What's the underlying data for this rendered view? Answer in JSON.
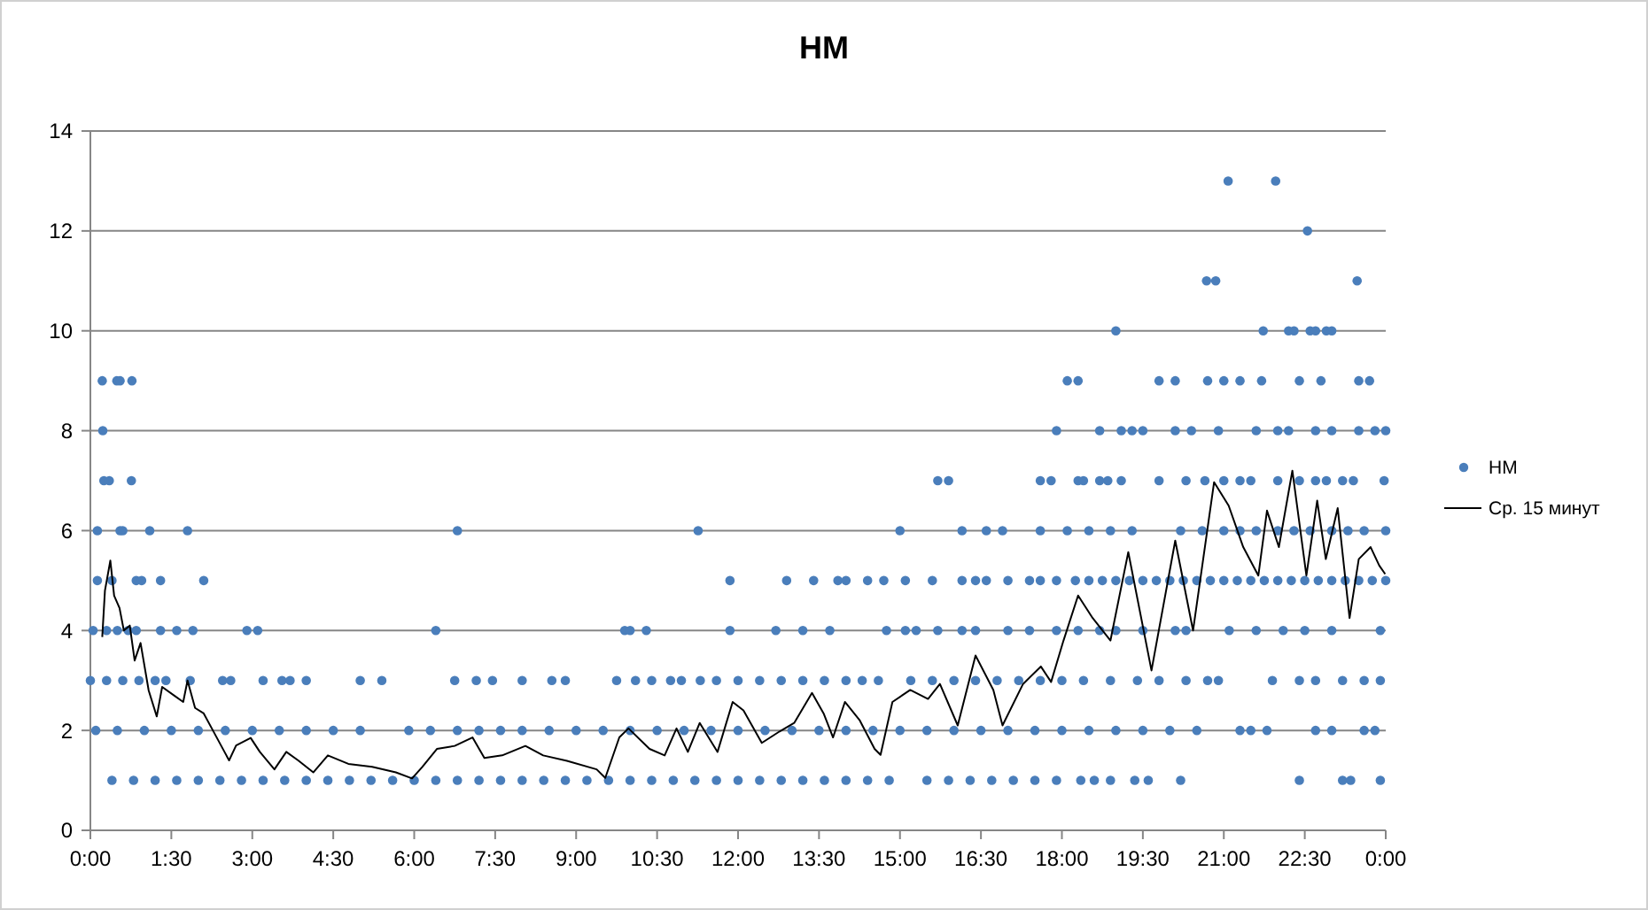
{
  "chart_data": {
    "type": "scatter",
    "title": "HM",
    "xlim": [
      0,
      24
    ],
    "ylim": [
      0,
      14
    ],
    "xticks": [
      {
        "value": 0,
        "label": "0:00"
      },
      {
        "value": 1.5,
        "label": "1:30"
      },
      {
        "value": 3,
        "label": "3:00"
      },
      {
        "value": 4.5,
        "label": "4:30"
      },
      {
        "value": 6,
        "label": "6:00"
      },
      {
        "value": 7.5,
        "label": "7:30"
      },
      {
        "value": 9,
        "label": "9:00"
      },
      {
        "value": 10.5,
        "label": "10:30"
      },
      {
        "value": 12,
        "label": "12:00"
      },
      {
        "value": 13.5,
        "label": "13:30"
      },
      {
        "value": 15,
        "label": "15:00"
      },
      {
        "value": 16.5,
        "label": "16:30"
      },
      {
        "value": 18,
        "label": "18:00"
      },
      {
        "value": 19.5,
        "label": "19:30"
      },
      {
        "value": 21,
        "label": "21:00"
      },
      {
        "value": 22.5,
        "label": "22:30"
      },
      {
        "value": 24,
        "label": "0:00"
      }
    ],
    "yticks": [
      0,
      2,
      4,
      6,
      8,
      10,
      12,
      14
    ],
    "grid": "y",
    "legend": "right",
    "series": [
      {
        "name": "HM",
        "color": "#4a7ebb",
        "marker": "circle",
        "x": [
          21.08,
          21.96,
          22.55,
          20.68,
          20.85,
          23.47,
          19.0,
          21.73,
          22.2,
          22.3,
          22.6,
          22.7,
          22.9,
          23.0,
          0.22,
          0.49,
          0.55,
          0.77,
          18.1,
          18.3,
          19.8,
          20.1,
          20.7,
          21.0,
          21.3,
          21.7,
          22.4,
          22.8,
          23.5,
          23.7,
          0.23,
          17.9,
          18.7,
          19.1,
          19.3,
          19.5,
          20.1,
          20.4,
          20.9,
          21.6,
          22.0,
          22.2,
          22.7,
          23.0,
          23.5,
          23.8,
          24.0,
          0.25,
          0.35,
          0.76,
          15.7,
          15.9,
          17.6,
          17.8,
          18.3,
          18.4,
          18.7,
          18.85,
          19.1,
          19.8,
          20.3,
          20.65,
          21.0,
          21.3,
          21.5,
          22.0,
          22.4,
          22.7,
          22.9,
          23.2,
          23.4,
          23.97,
          0.13,
          0.55,
          0.6,
          1.1,
          1.8,
          6.8,
          11.26,
          15.0,
          16.15,
          16.6,
          16.9,
          17.6,
          18.1,
          18.5,
          18.9,
          19.3,
          20.2,
          20.6,
          21.0,
          21.3,
          21.6,
          22.0,
          22.3,
          22.6,
          23.0,
          23.3,
          23.6,
          24.0,
          0.13,
          0.4,
          0.85,
          0.95,
          1.3,
          2.1,
          11.85,
          12.9,
          13.4,
          13.85,
          14.0,
          14.4,
          14.7,
          15.1,
          15.6,
          16.15,
          16.4,
          16.6,
          17.0,
          17.4,
          17.6,
          17.9,
          18.25,
          18.5,
          18.75,
          19.0,
          19.25,
          19.5,
          19.75,
          20.0,
          20.25,
          20.5,
          20.75,
          21.0,
          21.25,
          21.5,
          21.75,
          22.0,
          22.25,
          22.5,
          22.75,
          23.0,
          23.25,
          23.5,
          23.75,
          24.0,
          0.05,
          0.3,
          0.5,
          0.7,
          0.85,
          1.3,
          1.6,
          1.9,
          2.9,
          3.1,
          6.4,
          9.9,
          10.0,
          10.3,
          11.85,
          12.7,
          13.2,
          13.7,
          14.75,
          15.1,
          15.3,
          15.7,
          16.15,
          16.4,
          17.0,
          17.4,
          17.9,
          18.3,
          18.7,
          19.0,
          19.5,
          20.1,
          20.3,
          21.1,
          21.6,
          22.1,
          22.5,
          23.0,
          23.9,
          0.0,
          0.3,
          0.6,
          0.9,
          1.2,
          1.4,
          1.85,
          2.45,
          2.6,
          3.2,
          3.55,
          3.7,
          4.0,
          5.0,
          5.4,
          6.75,
          7.15,
          7.45,
          8.0,
          8.55,
          8.8,
          9.75,
          10.1,
          10.4,
          10.75,
          10.95,
          11.3,
          11.6,
          12.0,
          12.4,
          12.8,
          13.2,
          13.6,
          14.0,
          14.3,
          14.6,
          15.2,
          15.6,
          16.0,
          16.4,
          16.8,
          17.2,
          17.6,
          18.0,
          18.4,
          18.9,
          19.4,
          19.8,
          20.3,
          20.7,
          20.9,
          21.9,
          22.4,
          22.7,
          23.2,
          23.6,
          23.9,
          0.1,
          0.5,
          1.0,
          1.5,
          2.0,
          2.5,
          3.0,
          3.5,
          4.0,
          4.5,
          5.0,
          5.9,
          6.3,
          6.8,
          7.2,
          7.6,
          8.0,
          8.5,
          9.0,
          9.5,
          10.0,
          10.5,
          11.0,
          11.5,
          12.0,
          12.5,
          13.0,
          13.5,
          14.0,
          14.5,
          15.0,
          15.5,
          16.0,
          16.5,
          17.0,
          17.5,
          18.0,
          18.5,
          19.0,
          19.5,
          20.0,
          20.5,
          21.3,
          21.5,
          21.8,
          22.7,
          23.0,
          23.6,
          23.8,
          0.4,
          0.8,
          1.2,
          1.6,
          2.0,
          2.4,
          2.8,
          3.2,
          3.6,
          4.0,
          4.4,
          4.8,
          5.2,
          5.6,
          6.0,
          6.4,
          6.8,
          7.2,
          7.6,
          8.0,
          8.4,
          8.8,
          9.2,
          9.6,
          10.0,
          10.4,
          10.8,
          11.2,
          11.6,
          12.0,
          12.4,
          12.8,
          13.2,
          13.6,
          14.0,
          14.4,
          14.8,
          15.5,
          15.9,
          16.3,
          16.7,
          17.1,
          17.5,
          17.9,
          18.35,
          18.6,
          18.9,
          19.35,
          19.6,
          20.2,
          22.4,
          23.2,
          23.35,
          23.9
        ],
        "values": [
          13,
          13,
          12,
          11,
          11,
          11,
          10,
          10,
          10,
          10,
          10,
          10,
          10,
          10,
          9,
          9,
          9,
          9,
          9,
          9,
          9,
          9,
          9,
          9,
          9,
          9,
          9,
          9,
          9,
          9,
          8,
          8,
          8,
          8,
          8,
          8,
          8,
          8,
          8,
          8,
          8,
          8,
          8,
          8,
          8,
          8,
          8,
          7,
          7,
          7,
          7,
          7,
          7,
          7,
          7,
          7,
          7,
          7,
          7,
          7,
          7,
          7,
          7,
          7,
          7,
          7,
          7,
          7,
          7,
          7,
          7,
          7,
          6,
          6,
          6,
          6,
          6,
          6,
          6,
          6,
          6,
          6,
          6,
          6,
          6,
          6,
          6,
          6,
          6,
          6,
          6,
          6,
          6,
          6,
          6,
          6,
          6,
          6,
          6,
          6,
          5,
          5,
          5,
          5,
          5,
          5,
          5,
          5,
          5,
          5,
          5,
          5,
          5,
          5,
          5,
          5,
          5,
          5,
          5,
          5,
          5,
          5,
          5,
          5,
          5,
          5,
          5,
          5,
          5,
          5,
          5,
          5,
          5,
          5,
          5,
          5,
          5,
          5,
          5,
          5,
          5,
          5,
          5,
          5,
          5,
          5,
          4,
          4,
          4,
          4,
          4,
          4,
          4,
          4,
          4,
          4,
          4,
          4,
          4,
          4,
          4,
          4,
          4,
          4,
          4,
          4,
          4,
          4,
          4,
          4,
          4,
          4,
          4,
          4,
          4,
          4,
          4,
          4,
          4,
          4,
          4,
          4,
          4,
          4,
          4,
          3,
          3,
          3,
          3,
          3,
          3,
          3,
          3,
          3,
          3,
          3,
          3,
          3,
          3,
          3,
          3,
          3,
          3,
          3,
          3,
          3,
          3,
          3,
          3,
          3,
          3,
          3,
          3,
          3,
          3,
          3,
          3,
          3,
          3,
          3,
          3,
          3,
          3,
          3,
          3,
          3,
          3,
          3,
          3,
          3,
          3,
          3,
          3,
          3,
          3,
          3,
          3,
          3,
          3,
          3,
          3,
          3,
          2,
          2,
          2,
          2,
          2,
          2,
          2,
          2,
          2,
          2,
          2,
          2,
          2,
          2,
          2,
          2,
          2,
          2,
          2,
          2,
          2,
          2,
          2,
          2,
          2,
          2,
          2,
          2,
          2,
          2,
          2,
          2,
          2,
          2,
          2,
          2,
          2,
          2,
          2,
          2,
          2,
          2,
          2,
          2,
          2,
          2,
          2,
          2,
          2,
          1,
          1,
          1,
          1,
          1,
          1,
          1,
          1,
          1,
          1,
          1,
          1,
          1,
          1,
          1,
          1,
          1,
          1,
          1,
          1,
          1,
          1,
          1,
          1,
          1,
          1,
          1,
          1,
          1,
          1,
          1,
          1,
          1,
          1,
          1,
          1,
          1,
          1,
          1,
          1,
          1,
          1,
          1,
          1,
          1,
          1,
          1,
          1,
          1,
          1,
          1,
          1,
          1,
          1
        ]
      },
      {
        "name": "Ср. 15 минут",
        "type": "line",
        "color": "#000000",
        "marker": "none",
        "line_style": "solid",
        "x": [
          0.22,
          0.27,
          0.37,
          0.44,
          0.54,
          0.62,
          0.73,
          0.82,
          0.93,
          1.08,
          1.23,
          1.33,
          1.55,
          1.72,
          1.8,
          1.94,
          2.1,
          2.27,
          2.57,
          2.7,
          2.97,
          3.14,
          3.41,
          3.63,
          3.85,
          4.13,
          4.4,
          4.78,
          5.22,
          5.66,
          5.96,
          6.15,
          6.42,
          6.75,
          7.08,
          7.3,
          7.63,
          8.06,
          8.39,
          8.83,
          9.38,
          9.54,
          9.8,
          9.97,
          10.36,
          10.64,
          10.86,
          11.07,
          11.29,
          11.62,
          11.9,
          12.1,
          12.44,
          12.77,
          13.04,
          13.37,
          13.59,
          13.76,
          13.98,
          14.25,
          14.53,
          14.64,
          14.86,
          15.19,
          15.52,
          15.74,
          16.07,
          16.4,
          16.73,
          16.9,
          17.28,
          17.61,
          17.8,
          18.03,
          18.3,
          18.57,
          18.9,
          19.23,
          19.66,
          20.1,
          20.43,
          20.82,
          21.09,
          21.36,
          21.64,
          21.8,
          22.02,
          22.27,
          22.53,
          22.73,
          22.89,
          23.11,
          23.33,
          23.5,
          23.72,
          23.88,
          23.99
        ],
        "values": [
          3.87,
          4.8,
          5.4,
          4.7,
          4.45,
          4.0,
          4.1,
          3.4,
          3.75,
          2.8,
          2.28,
          2.87,
          2.7,
          2.57,
          3.0,
          2.45,
          2.34,
          2.0,
          1.4,
          1.7,
          1.85,
          1.57,
          1.22,
          1.57,
          1.4,
          1.16,
          1.5,
          1.33,
          1.27,
          1.16,
          1.04,
          1.27,
          1.63,
          1.69,
          1.86,
          1.45,
          1.5,
          1.69,
          1.5,
          1.39,
          1.22,
          1.05,
          1.86,
          2.04,
          1.63,
          1.5,
          2.04,
          1.57,
          2.15,
          1.57,
          2.57,
          2.4,
          1.75,
          1.98,
          2.15,
          2.75,
          2.33,
          1.86,
          2.57,
          2.21,
          1.63,
          1.51,
          2.57,
          2.81,
          2.63,
          2.93,
          2.1,
          3.5,
          2.81,
          2.1,
          2.93,
          3.28,
          2.97,
          3.8,
          4.7,
          4.25,
          3.8,
          5.57,
          3.2,
          5.8,
          4.0,
          6.97,
          6.5,
          5.67,
          5.1,
          6.4,
          5.67,
          7.2,
          5.1,
          6.6,
          5.43,
          6.45,
          4.25,
          5.43,
          5.67,
          5.3,
          5.13
        ]
      }
    ]
  }
}
